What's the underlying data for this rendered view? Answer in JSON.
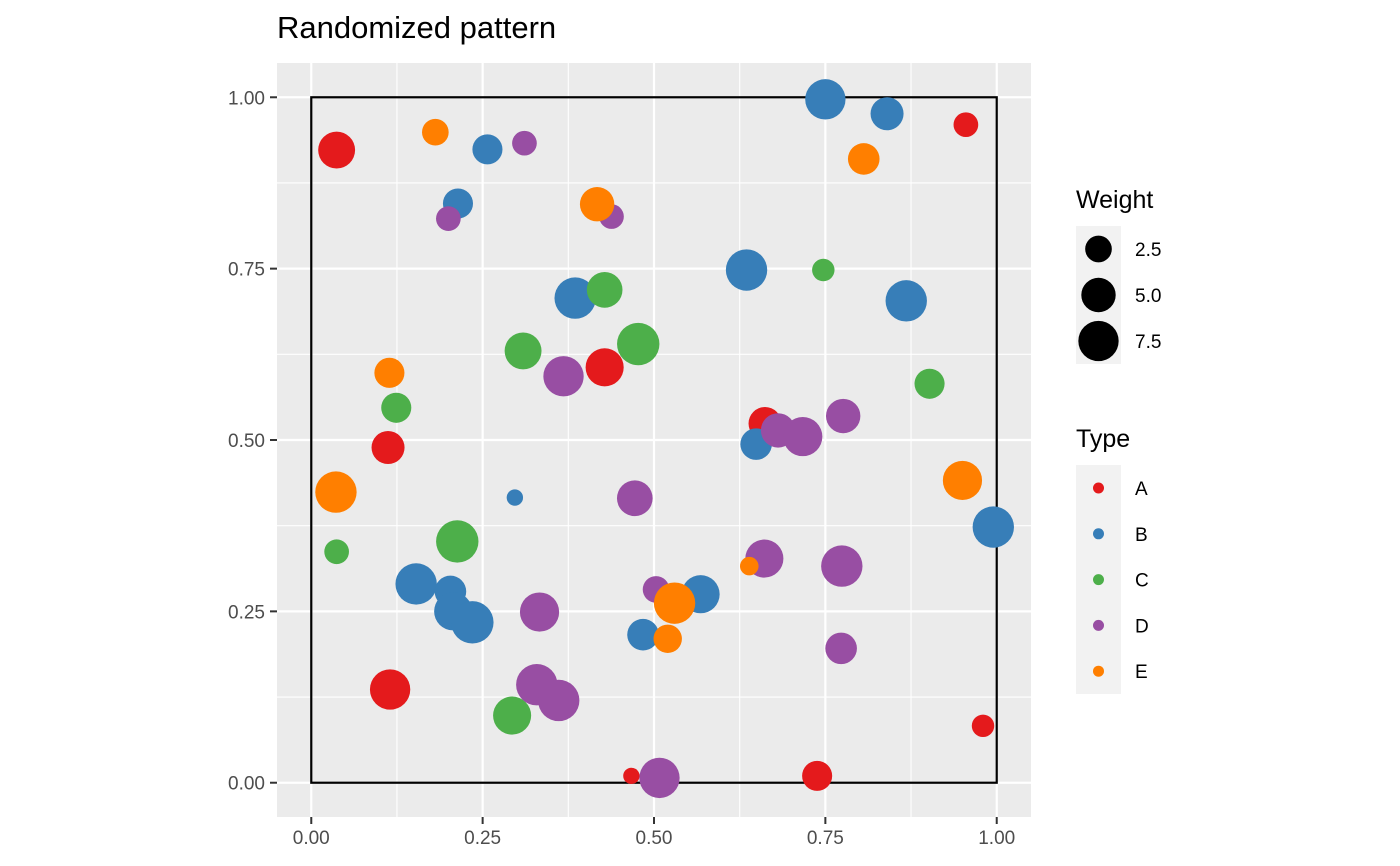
{
  "chart_data": {
    "type": "scatter",
    "title": "Randomized pattern",
    "xlabel": "",
    "ylabel": "",
    "xlim": [
      -0.05,
      1.05
    ],
    "ylim": [
      -0.05,
      1.05
    ],
    "x_ticks": [
      0.0,
      0.25,
      0.5,
      0.75,
      1.0
    ],
    "x_tick_labels": [
      "0.00",
      "0.25",
      "0.50",
      "0.75",
      "1.00"
    ],
    "y_ticks": [
      0.0,
      0.25,
      0.5,
      0.75,
      1.0
    ],
    "y_tick_labels": [
      "0.00",
      "0.25",
      "0.50",
      "0.75",
      "1.00"
    ],
    "grid": true,
    "window": [
      0,
      1,
      0,
      1
    ],
    "type_colors": {
      "A": "#E41A1C",
      "B": "#377EB8",
      "C": "#4DAF4A",
      "D": "#984EA3",
      "E": "#FF7F00"
    },
    "legends": {
      "weight": {
        "title": "Weight",
        "values": [
          2.5,
          5.0,
          7.5
        ],
        "labels": [
          "2.5",
          "5.0",
          "7.5"
        ]
      },
      "type": {
        "title": "Type",
        "labels": [
          "A",
          "B",
          "C",
          "D",
          "E"
        ]
      }
    },
    "points": [
      {
        "x": 0.037,
        "y": 0.923,
        "type": "A",
        "weight": 6.0
      },
      {
        "x": 0.955,
        "y": 0.96,
        "type": "A",
        "weight": 2.0
      },
      {
        "x": 0.428,
        "y": 0.606,
        "type": "A",
        "weight": 6.5
      },
      {
        "x": 0.112,
        "y": 0.489,
        "type": "A",
        "weight": 4.5
      },
      {
        "x": 0.662,
        "y": 0.524,
        "type": "A",
        "weight": 4.5
      },
      {
        "x": 0.115,
        "y": 0.136,
        "type": "A",
        "weight": 7.5
      },
      {
        "x": 0.467,
        "y": 0.01,
        "type": "A",
        "weight": 0.5
      },
      {
        "x": 0.738,
        "y": 0.01,
        "type": "A",
        "weight": 3.5
      },
      {
        "x": 0.98,
        "y": 0.083,
        "type": "A",
        "weight": 1.5
      },
      {
        "x": 0.75,
        "y": 0.997,
        "type": "B",
        "weight": 7.5
      },
      {
        "x": 0.84,
        "y": 0.976,
        "type": "B",
        "weight": 4.5
      },
      {
        "x": 0.257,
        "y": 0.924,
        "type": "B",
        "weight": 3.5
      },
      {
        "x": 0.214,
        "y": 0.845,
        "type": "B",
        "weight": 3.5
      },
      {
        "x": 0.635,
        "y": 0.748,
        "type": "B",
        "weight": 8.0
      },
      {
        "x": 0.385,
        "y": 0.707,
        "type": "B",
        "weight": 8.0
      },
      {
        "x": 0.868,
        "y": 0.703,
        "type": "B",
        "weight": 8.0
      },
      {
        "x": 0.649,
        "y": 0.494,
        "type": "B",
        "weight": 4.0
      },
      {
        "x": 0.297,
        "y": 0.416,
        "type": "B",
        "weight": 0.5
      },
      {
        "x": 0.995,
        "y": 0.373,
        "type": "B",
        "weight": 8.0
      },
      {
        "x": 0.153,
        "y": 0.29,
        "type": "B",
        "weight": 8.0
      },
      {
        "x": 0.203,
        "y": 0.279,
        "type": "B",
        "weight": 4.0
      },
      {
        "x": 0.207,
        "y": 0.25,
        "type": "B",
        "weight": 6.5
      },
      {
        "x": 0.235,
        "y": 0.234,
        "type": "B",
        "weight": 8.5
      },
      {
        "x": 0.568,
        "y": 0.275,
        "type": "B",
        "weight": 6.5
      },
      {
        "x": 0.484,
        "y": 0.216,
        "type": "B",
        "weight": 4.0
      },
      {
        "x": 0.747,
        "y": 0.748,
        "type": "C",
        "weight": 1.5
      },
      {
        "x": 0.428,
        "y": 0.719,
        "type": "C",
        "weight": 5.5
      },
      {
        "x": 0.477,
        "y": 0.64,
        "type": "C",
        "weight": 8.5
      },
      {
        "x": 0.309,
        "y": 0.63,
        "type": "C",
        "weight": 6.0
      },
      {
        "x": 0.902,
        "y": 0.582,
        "type": "C",
        "weight": 3.5
      },
      {
        "x": 0.124,
        "y": 0.547,
        "type": "C",
        "weight": 3.5
      },
      {
        "x": 0.213,
        "y": 0.352,
        "type": "C",
        "weight": 8.5
      },
      {
        "x": 0.037,
        "y": 0.337,
        "type": "C",
        "weight": 2.0
      },
      {
        "x": 0.293,
        "y": 0.098,
        "type": "C",
        "weight": 6.5
      },
      {
        "x": 0.311,
        "y": 0.933,
        "type": "D",
        "weight": 2.0
      },
      {
        "x": 0.438,
        "y": 0.826,
        "type": "D",
        "weight": 2.0
      },
      {
        "x": 0.2,
        "y": 0.823,
        "type": "D",
        "weight": 2.0
      },
      {
        "x": 0.368,
        "y": 0.593,
        "type": "D",
        "weight": 7.5
      },
      {
        "x": 0.776,
        "y": 0.535,
        "type": "D",
        "weight": 5.0
      },
      {
        "x": 0.681,
        "y": 0.514,
        "type": "D",
        "weight": 5.0
      },
      {
        "x": 0.717,
        "y": 0.505,
        "type": "D",
        "weight": 7.0
      },
      {
        "x": 0.472,
        "y": 0.415,
        "type": "D",
        "weight": 5.5
      },
      {
        "x": 0.661,
        "y": 0.327,
        "type": "D",
        "weight": 6.5
      },
      {
        "x": 0.774,
        "y": 0.316,
        "type": "D",
        "weight": 8.0
      },
      {
        "x": 0.503,
        "y": 0.282,
        "type": "D",
        "weight": 2.5
      },
      {
        "x": 0.333,
        "y": 0.249,
        "type": "D",
        "weight": 7.0
      },
      {
        "x": 0.773,
        "y": 0.196,
        "type": "D",
        "weight": 4.0
      },
      {
        "x": 0.329,
        "y": 0.143,
        "type": "D",
        "weight": 8.0
      },
      {
        "x": 0.361,
        "y": 0.12,
        "type": "D",
        "weight": 8.0
      },
      {
        "x": 0.508,
        "y": 0.007,
        "type": "D",
        "weight": 7.5
      },
      {
        "x": 0.181,
        "y": 0.949,
        "type": "E",
        "weight": 2.5
      },
      {
        "x": 0.806,
        "y": 0.91,
        "type": "E",
        "weight": 4.0
      },
      {
        "x": 0.417,
        "y": 0.844,
        "type": "E",
        "weight": 5.0
      },
      {
        "x": 0.114,
        "y": 0.598,
        "type": "E",
        "weight": 3.5
      },
      {
        "x": 0.036,
        "y": 0.424,
        "type": "E",
        "weight": 8.0
      },
      {
        "x": 0.95,
        "y": 0.441,
        "type": "E",
        "weight": 7.0
      },
      {
        "x": 0.639,
        "y": 0.316,
        "type": "E",
        "weight": 0.8
      },
      {
        "x": 0.53,
        "y": 0.262,
        "type": "E",
        "weight": 8.0
      },
      {
        "x": 0.52,
        "y": 0.21,
        "type": "E",
        "weight": 3.0
      }
    ]
  }
}
